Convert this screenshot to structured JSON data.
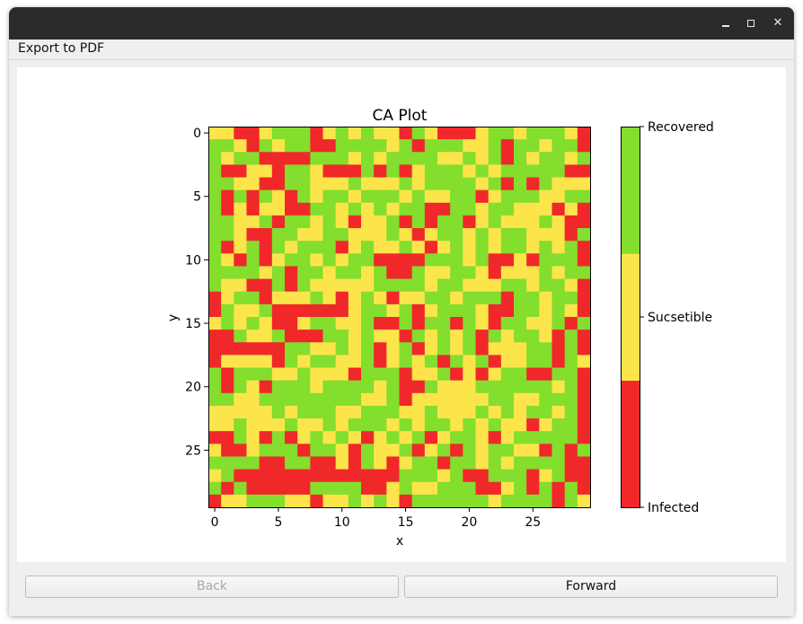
{
  "window": {
    "close_glyph": "✕"
  },
  "menu": {
    "export_label": "Export to PDF"
  },
  "buttons": {
    "back_label": "Back",
    "forward_label": "Forward"
  },
  "colors": {
    "infected": "#f0282a",
    "susceptible": "#fbe54a",
    "recovered": "#83de2d"
  },
  "chart_data": {
    "type": "heatmap",
    "title": "CA Plot",
    "xlabel": "x",
    "ylabel": "y",
    "x_ticks": [
      0,
      5,
      10,
      15,
      20,
      25
    ],
    "y_ticks": [
      0,
      5,
      10,
      15,
      20,
      25
    ],
    "grid_size": [
      30,
      30
    ],
    "legend": "colorbar-right",
    "colorbar_labels": [
      "Infected",
      "Sucsetible",
      "Recovered"
    ],
    "state_codes": {
      "0": "Infected",
      "1": "Sucsetible",
      "2": "Recovered"
    },
    "grid": [
      "110012220121211021000122122210",
      "221021220022221202221120221220",
      "212200002221212222112120212212",
      "200110221000202012221212222200",
      "221100221112111212222120202111",
      "202021021221222121122012221122",
      "201011002212121220022122111010",
      "221120221210112020220121112100",
      "221002211221112101221212211102",
      "201202122201211210121212212120",
      "210201221212200002221200102220",
      "222212022122120021122101112122",
      "211002021111122221221112212210",
      "012201112101210112212220221220",
      "021120000001221201222100221210",
      "121210012211200202202102211202",
      "002112000221211021212021221020",
      "000000221121201201212011122020",
      "011110212211201212021201122021",
      "202221121110222011201012200220",
      "202102221222212002111222222120",
      "221122222222112011111122112220",
      "111112122211222112111212122120",
      "112111211212221212212121101220",
      "002102012121012120122101222220",
      "100122202210211201202122110202",
      "222200220010210122022121222200",
      "120000000000000222120022201200",
      "202000002222001211222001202020",
      "011222110112121022222212222021"
    ]
  }
}
